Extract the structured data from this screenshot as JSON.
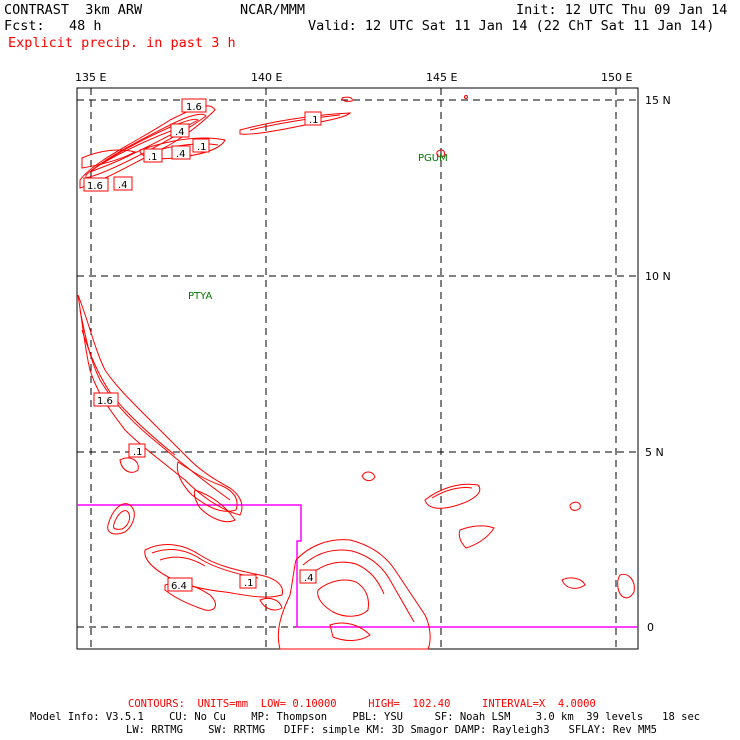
{
  "header": {
    "model": "CONTRAST  3km ARW",
    "fcst": "Fcst:   48 h",
    "org": "NCAR/MMM",
    "init": "Init: 12 UTC Thu 09 Jan 14",
    "valid": "Valid: 12 UTC Sat 11 Jan 14 (22 ChT Sat 11 Jan 14)",
    "field": "Explicit precip. in past 3 h"
  },
  "map": {
    "lon_labels": [
      "135 E",
      "140 E",
      "145 E",
      "150 E"
    ],
    "lat_labels": [
      "15 N",
      "10 N",
      "5 N",
      "0"
    ],
    "stations": [
      {
        "id": "PGUM",
        "label": "PGUM"
      },
      {
        "id": "PTYA",
        "label": "PTYA"
      }
    ],
    "contour_labels": [
      {
        "text": "1.6"
      },
      {
        "text": ".4"
      },
      {
        "text": ".1"
      },
      {
        "text": ".4"
      },
      {
        "text": ".1"
      },
      {
        "text": "1.6"
      },
      {
        "text": ".4"
      },
      {
        "text": ".1"
      },
      {
        "text": "1.6"
      },
      {
        "text": ".1"
      },
      {
        "text": "6.4"
      },
      {
        "text": ".1"
      },
      {
        "text": ".4"
      }
    ],
    "colors": {
      "contour": "#ff0000",
      "domain_outline": "#ff00ff",
      "station": "#007700",
      "grid": "#000000"
    }
  },
  "footer": {
    "contours": "CONTOURS:  UNITS=mm  LOW= 0.10000     HIGH=  102.40     INTERVAL=X  4.0000",
    "model_info": "Model Info: V3.5.1    CU: No Cu    MP: Thompson    PBL: YSU     SF: Noah LSM    3.0 km  39 levels   18 sec",
    "model_info2": "LW: RRTMG    SW: RRTMG   DIFF: simple KM: 3D Smagor DAMP: Rayleigh3   SFLAY: Rev MM5"
  }
}
